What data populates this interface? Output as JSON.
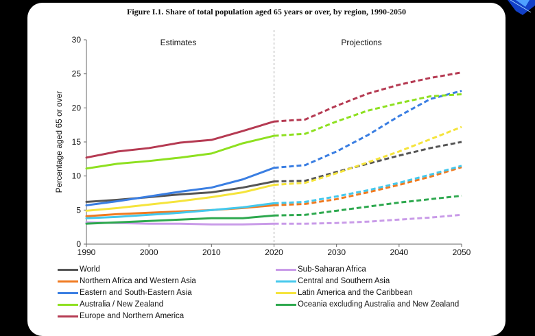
{
  "chart_data": {
    "type": "line",
    "title": "Figure I.1. Share of total population aged 65 years or over, by region, 1990-2050",
    "xlabel": "",
    "ylabel": "Percentage aged 65 or over",
    "xlim": [
      1990,
      2050
    ],
    "ylim": [
      0,
      30
    ],
    "xticks": [
      1990,
      2000,
      2010,
      2020,
      2030,
      2040,
      2050
    ],
    "yticks": [
      0,
      5,
      10,
      15,
      20,
      25,
      30
    ],
    "divider_x": 2020,
    "annotations": [
      {
        "text": "Estimates",
        "period": "1990-2020"
      },
      {
        "text": "Projections",
        "period": "2020-2050"
      }
    ],
    "estimate_x": [
      1990,
      1995,
      2000,
      2005,
      2010,
      2015,
      2020
    ],
    "projection_x": [
      2020,
      2025,
      2030,
      2035,
      2040,
      2045,
      2050
    ],
    "series": [
      {
        "name": "World",
        "color": "#555555",
        "estimates": [
          6.2,
          6.5,
          6.9,
          7.3,
          7.6,
          8.3,
          9.2
        ],
        "projections": [
          9.2,
          9.3,
          10.6,
          11.8,
          13.0,
          14.1,
          15.0
        ]
      },
      {
        "name": "Sub-Saharan Africa",
        "color": "#c99be8",
        "estimates": [
          3.2,
          3.1,
          3.0,
          3.0,
          2.9,
          2.9,
          3.0
        ],
        "projections": [
          3.0,
          3.0,
          3.1,
          3.3,
          3.6,
          3.9,
          4.3
        ]
      },
      {
        "name": "Northern Africa and Western Asia",
        "color": "#f07a20",
        "estimates": [
          4.1,
          4.4,
          4.6,
          4.8,
          5.0,
          5.3,
          5.7
        ],
        "projections": [
          5.7,
          5.9,
          6.6,
          7.6,
          8.7,
          9.9,
          11.3
        ]
      },
      {
        "name": "Central and Southern Asia",
        "color": "#44c8ec",
        "estimates": [
          3.8,
          4.0,
          4.3,
          4.6,
          5.0,
          5.4,
          6.0
        ],
        "projections": [
          6.0,
          6.2,
          7.0,
          7.9,
          9.0,
          10.2,
          11.5
        ]
      },
      {
        "name": "Eastern and South-Eastern Asia",
        "color": "#3a7ee2",
        "estimates": [
          5.7,
          6.3,
          7.0,
          7.7,
          8.3,
          9.5,
          11.2
        ],
        "projections": [
          11.2,
          11.6,
          13.6,
          16.0,
          18.8,
          21.3,
          22.5
        ]
      },
      {
        "name": "Latin America and the Caribbean",
        "color": "#f5e43c",
        "estimates": [
          4.9,
          5.3,
          5.8,
          6.3,
          6.9,
          7.6,
          8.7
        ],
        "projections": [
          8.7,
          9.0,
          10.4,
          12.0,
          13.6,
          15.4,
          17.2
        ]
      },
      {
        "name": "Australia / New Zealand",
        "color": "#8ee020",
        "estimates": [
          11.1,
          11.8,
          12.2,
          12.7,
          13.3,
          14.8,
          15.9
        ],
        "projections": [
          15.9,
          16.2,
          18.0,
          19.6,
          20.7,
          21.7,
          22.0
        ]
      },
      {
        "name": "Oceania excluding Australia and New Zealand",
        "color": "#2da84e",
        "estimates": [
          3.0,
          3.2,
          3.4,
          3.6,
          3.8,
          3.8,
          4.2
        ],
        "projections": [
          4.2,
          4.3,
          4.9,
          5.5,
          6.1,
          6.6,
          7.1
        ]
      },
      {
        "name": "Europe and Northern America",
        "color": "#b53a52",
        "estimates": [
          12.7,
          13.6,
          14.1,
          14.9,
          15.3,
          16.6,
          18.0
        ],
        "projections": [
          18.0,
          18.3,
          20.3,
          22.1,
          23.4,
          24.4,
          25.2
        ]
      }
    ],
    "legend_order": [
      "World",
      "Sub-Saharan Africa",
      "Northern Africa and Western Asia",
      "Central and Southern Asia",
      "Eastern and South-Eastern Asia",
      "Latin America and the Caribbean",
      "Australia / New Zealand",
      "Oceania excluding Australia and New Zealand",
      "Europe and Northern America"
    ],
    "legend_position": "bottom"
  }
}
